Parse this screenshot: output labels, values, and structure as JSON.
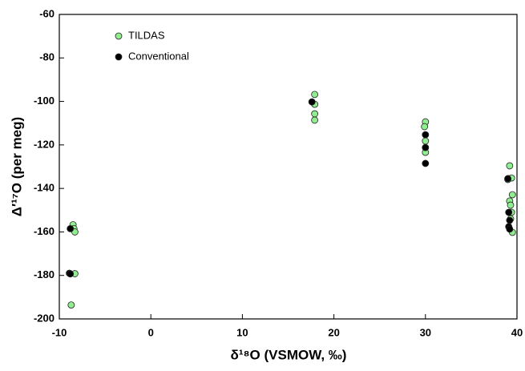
{
  "chart_data": {
    "type": "scatter",
    "x_label": "δ¹⁸O (VSMOW, ‰)",
    "y_label": "Δ′¹⁷O (per meg)",
    "xlim": [
      -10,
      40
    ],
    "xticks": [
      -10,
      0,
      10,
      20,
      30,
      40
    ],
    "ylim": [
      -200,
      -60
    ],
    "yticks": [
      -200,
      -180,
      -160,
      -140,
      -120,
      -100,
      -80,
      -60
    ],
    "grid": false,
    "legend": "upper left",
    "series": [
      {
        "name": "TILDAS",
        "color": "#90ee90",
        "x": [
          -8.5,
          -8.4,
          -8.3,
          -8.3,
          -8.7,
          17.9,
          17.9,
          17.9,
          17.9,
          30.0,
          29.9,
          30.0,
          30.0,
          39.2,
          39.4,
          39.0,
          39.5,
          39.2,
          39.3,
          39.4,
          39.3,
          39.5
        ],
        "values": [
          -156.7,
          -158.5,
          -160,
          -179.2,
          -193.6,
          -96.8,
          -101.3,
          -105.7,
          -108.6,
          -109.4,
          -111.6,
          -118.2,
          -123.4,
          -129.6,
          -135.2,
          -135.9,
          -142.9,
          -145.8,
          -147.7,
          -151,
          -154,
          -160.2
        ]
      },
      {
        "name": "Conventional",
        "color": "#000000",
        "x": [
          -8.8,
          -8.9,
          -8.8,
          17.6,
          30.0,
          30.0,
          30.0,
          39.0,
          39.1,
          39.2,
          39.1,
          39.2
        ],
        "values": [
          -158.5,
          -179,
          -179.3,
          -100.2,
          -115.3,
          -121.2,
          -128.5,
          -135.5,
          -151,
          -154.7,
          -157.6,
          -158.7
        ]
      }
    ]
  }
}
